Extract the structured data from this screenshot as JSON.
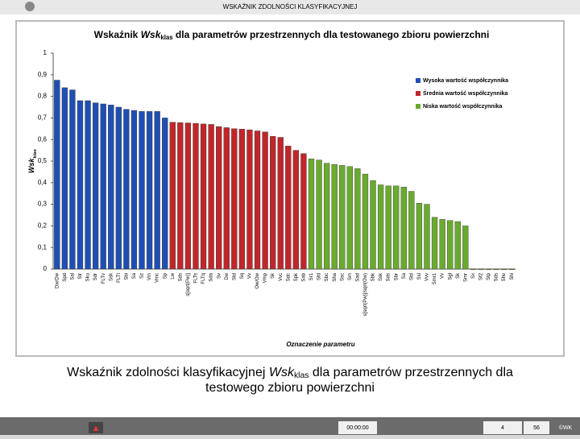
{
  "window_title": "WSKAŹNIK ZDOLNOŚCI KLASYFIKACYJNEJ",
  "chart_data": {
    "type": "bar",
    "title": [
      "Wskaźnik ",
      "Wsk",
      "klas",
      " dla parametrów przestrzennych dla testowanego zbioru powierzchni"
    ],
    "ylabel": [
      "Wsk",
      "klas"
    ],
    "xlabel": "Oznaczenie parametru",
    "categories": [
      "Dw/Dw",
      "Spd",
      "Sal",
      "Str",
      "Sku",
      "Sdr",
      "FLTv",
      "Ssk",
      "FLTt",
      "Sbi",
      "Sa",
      "Sz",
      "Vm",
      "Vmc",
      "Sp",
      "Lw",
      "Sds",
      "s[sqrt(Pw)]",
      "FLTs",
      "FLTq",
      "Sda",
      "Sv",
      "Dw",
      "Std",
      "Sq",
      "Vv",
      "Ow/Ow",
      "Vmp",
      "Sk",
      "Vvc",
      "Sdc",
      "Spk",
      "Sab",
      "Sr1",
      "Sfd",
      "Sbc",
      "Sha",
      "Ssc",
      "Sm",
      "Sad",
      "s[sqrt(Pw)]/sqrt(Ow)",
      "Sbk",
      "Ssk",
      "Sds",
      "Sbr",
      "Sa",
      "Std",
      "Ssl",
      "Vvv",
      "Smr1",
      "Vv",
      "Sgl",
      "Sk",
      "Smr",
      "Sx",
      "Sf2",
      "Stp",
      "Sds",
      "Shv",
      "Shi"
    ],
    "series": [
      {
        "name": "Wysoka wartość współczynnika",
        "color": "#1f4fb4",
        "values": [
          0.875,
          0.84,
          0.83,
          0.78,
          0.78,
          0.77,
          0.765,
          0.76,
          0.75,
          0.74,
          0.735,
          0.73,
          0.73,
          0.73,
          0.7,
          null,
          null,
          null,
          null,
          null,
          null,
          null,
          null,
          null,
          null,
          null,
          null,
          null,
          null,
          null,
          null,
          null,
          null,
          null,
          null,
          null,
          null,
          null,
          null,
          null,
          null,
          null,
          null,
          null,
          null,
          null,
          null,
          null,
          null,
          null,
          null,
          null,
          null,
          null,
          null,
          null,
          null,
          null,
          null,
          null
        ]
      },
      {
        "name": "Średnia wartość współczynnika",
        "color": "#c0262a",
        "values": [
          null,
          null,
          null,
          null,
          null,
          null,
          null,
          null,
          null,
          null,
          null,
          null,
          null,
          null,
          null,
          0.68,
          0.678,
          0.677,
          0.675,
          0.672,
          0.67,
          0.66,
          0.655,
          0.65,
          0.648,
          0.645,
          0.64,
          0.635,
          0.615,
          0.61,
          0.57,
          0.55,
          0.535,
          null,
          null,
          null,
          null,
          null,
          null,
          null,
          null,
          null,
          null,
          null,
          null,
          null,
          null,
          null,
          null,
          null,
          null,
          null,
          null,
          null,
          null,
          null,
          null,
          null,
          null,
          null
        ]
      },
      {
        "name": "Niska wartość współczynnika",
        "color": "#6aab2e",
        "values": [
          null,
          null,
          null,
          null,
          null,
          null,
          null,
          null,
          null,
          null,
          null,
          null,
          null,
          null,
          null,
          null,
          null,
          null,
          null,
          null,
          null,
          null,
          null,
          null,
          null,
          null,
          null,
          null,
          null,
          null,
          null,
          null,
          null,
          0.51,
          0.505,
          0.49,
          0.485,
          0.48,
          0.475,
          0.465,
          0.44,
          0.41,
          0.39,
          0.385,
          0.385,
          0.38,
          0.36,
          0.305,
          0.3,
          0.24,
          0.23,
          0.225,
          0.22,
          0.2,
          0,
          0,
          0,
          0,
          0,
          0
        ]
      }
    ],
    "ylim": [
      0,
      1
    ],
    "yticks": [
      0,
      {
        "value": 0.1,
        "label": "0,1"
      },
      {
        "value": 0.2,
        "label": "0,2"
      },
      {
        "value": 0.3,
        "label": "0,3"
      },
      {
        "value": 0.4,
        "label": "0,4"
      },
      {
        "value": 0.5,
        "label": "0,5"
      },
      {
        "value": 0.6,
        "label": "0,6"
      },
      {
        "value": 0.7,
        "label": "0,7"
      },
      {
        "value": 0.8,
        "label": "0,8"
      },
      {
        "value": 0.9,
        "label": "0,9"
      },
      1
    ],
    "legend": "upper right"
  },
  "caption": [
    "Wskaźnik zdolności klasyfikacyjnej ",
    "Wsk",
    "klas",
    " dla parametrów przestrzennych dla",
    "testowego zbioru powierzchni"
  ],
  "footer": {
    "time": "00:00:00",
    "slide": "4",
    "total": "56",
    "author": "©WK"
  }
}
